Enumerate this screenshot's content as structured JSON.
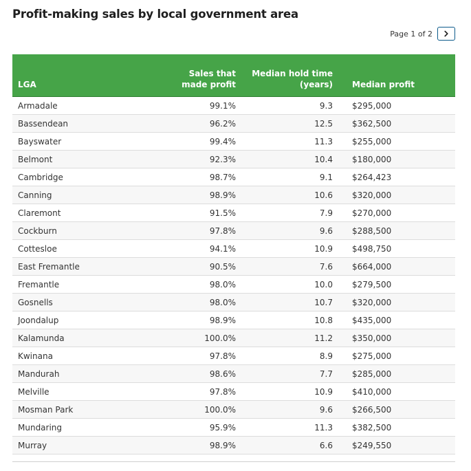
{
  "chart_data": {
    "type": "table",
    "title": "Profit-making sales by local government area",
    "columns": [
      "LGA",
      "Sales that made profit",
      "Median hold time (years)",
      "Median profit"
    ],
    "column_header_lines": [
      [
        "LGA"
      ],
      [
        "Sales that",
        "made profit"
      ],
      [
        "Median hold time",
        "(years)"
      ],
      [
        "Median profit"
      ]
    ],
    "rows": [
      [
        "Armadale",
        "99.1%",
        "9.3",
        "$295,000"
      ],
      [
        "Bassendean",
        "96.2%",
        "12.5",
        "$362,500"
      ],
      [
        "Bayswater",
        "99.4%",
        "11.3",
        "$255,000"
      ],
      [
        "Belmont",
        "92.3%",
        "10.4",
        "$180,000"
      ],
      [
        "Cambridge",
        "98.7%",
        "9.1",
        "$264,423"
      ],
      [
        "Canning",
        "98.9%",
        "10.6",
        "$320,000"
      ],
      [
        "Claremont",
        "91.5%",
        "7.9",
        "$270,000"
      ],
      [
        "Cockburn",
        "97.8%",
        "9.6",
        "$288,500"
      ],
      [
        "Cottesloe",
        "94.1%",
        "10.9",
        "$498,750"
      ],
      [
        "East Fremantle",
        "90.5%",
        "7.6",
        "$664,000"
      ],
      [
        "Fremantle",
        "98.0%",
        "10.0",
        "$279,500"
      ],
      [
        "Gosnells",
        "98.0%",
        "10.7",
        "$320,000"
      ],
      [
        "Joondalup",
        "98.9%",
        "10.8",
        "$435,000"
      ],
      [
        "Kalamunda",
        "100.0%",
        "11.2",
        "$350,000"
      ],
      [
        "Kwinana",
        "97.8%",
        "8.9",
        "$275,000"
      ],
      [
        "Mandurah",
        "98.6%",
        "7.7",
        "$285,000"
      ],
      [
        "Melville",
        "97.8%",
        "10.9",
        "$410,000"
      ],
      [
        "Mosman Park",
        "100.0%",
        "9.6",
        "$266,500"
      ],
      [
        "Mundaring",
        "95.9%",
        "11.3",
        "$382,500"
      ],
      [
        "Murray",
        "98.9%",
        "6.6",
        "$249,550"
      ]
    ],
    "header_color": "#46a448"
  },
  "pagination": {
    "label": "Page 1 of 2",
    "next_icon": "chevron-right-icon",
    "button_border_color": "#0b5a8a"
  }
}
